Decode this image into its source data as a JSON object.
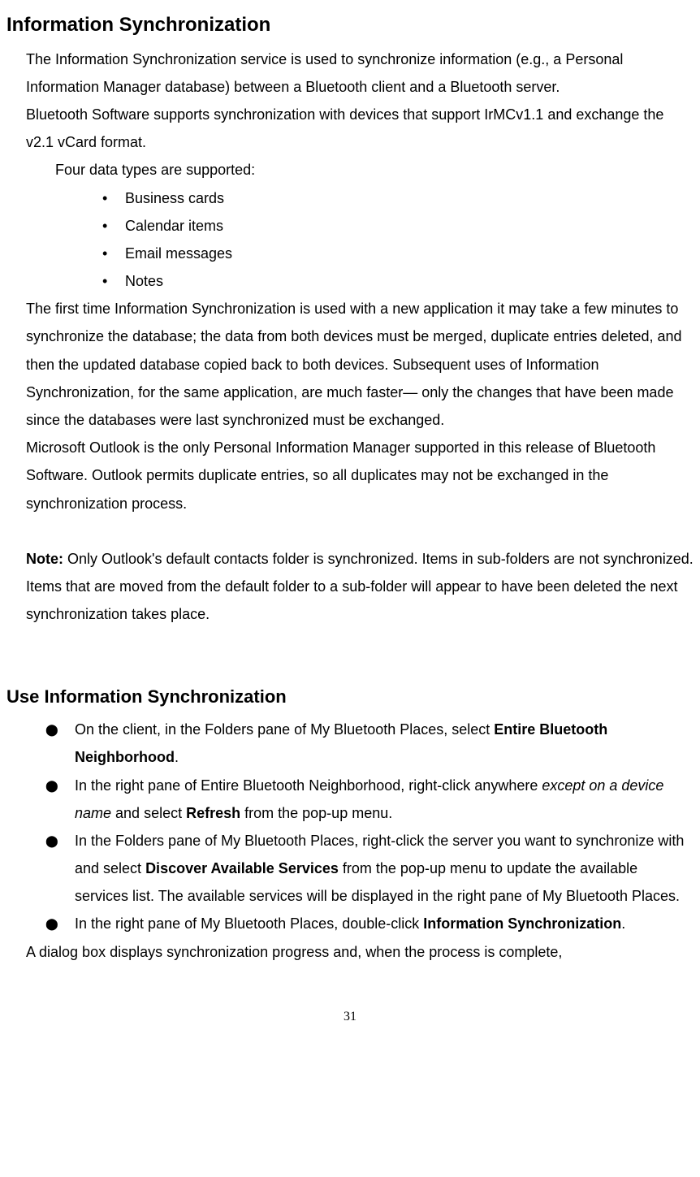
{
  "section1": {
    "title": "Information Synchronization",
    "p1": "The Information Synchronization service is used to synchronize information (e.g., a Personal Information Manager database) between a Bluetooth client and a Bluetooth server.",
    "p2": "Bluetooth Software supports synchronization with devices that support IrMCv1.1 and exchange the v2.1 vCard format.",
    "p3": "Four data types are supported:",
    "types": [
      "Business cards",
      "Calendar items",
      "Email messages",
      "Notes"
    ],
    "p4": "The first time Information Synchronization is used with a new application it may take a few minutes to synchronize the database; the data from both devices must be merged, duplicate entries deleted, and then the updated database copied back to both devices. Subsequent uses of Information Synchronization, for the same application, are much faster— only the changes that have been made since the databases were last synchronized must be exchanged.",
    "p5": "Microsoft Outlook is the only Personal Information Manager supported in this release of Bluetooth Software. Outlook permits duplicate entries, so all duplicates may not be exchanged in the synchronization process.",
    "note_label": "Note:",
    "note_body": " Only Outlook's default contacts folder is synchronized. Items in sub-folders are not synchronized. Items that are moved from the default folder to a sub-folder will appear to have been deleted the next synchronization takes place."
  },
  "section2": {
    "title": "Use Information Synchronization",
    "step1_a": "On the client, in the Folders pane of My Bluetooth Places, select ",
    "step1_b": "Entire Bluetooth Neighborhood",
    "step1_c": ".",
    "step2_a": " In the right pane of Entire Bluetooth Neighborhood, right-click anywhere ",
    "step2_b": "except on a device name",
    "step2_c": " and select ",
    "step2_d": "Refresh",
    "step2_e": " from the pop-up menu.",
    "step3_a": " In the Folders pane of My Bluetooth Places, right-click the server you want to synchronize with and select ",
    "step3_b": "Discover Available Services",
    "step3_c": " from the pop-up menu to update the available services list. The available services will be displayed in the right pane of My Bluetooth Places.",
    "step4_a": " In the right pane of My Bluetooth Places, double-click ",
    "step4_b": "Information Synchronization",
    "step4_c": ".",
    "p_last": "A dialog box displays synchronization progress and, when the process is complete,"
  },
  "page_number": "31"
}
